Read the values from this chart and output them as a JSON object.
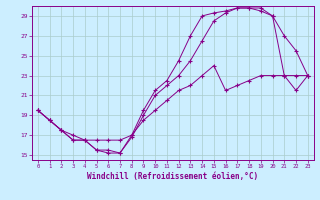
{
  "xlabel": "Windchill (Refroidissement éolien,°C)",
  "background_color": "#cceeff",
  "grid_color": "#aacccc",
  "line_color": "#880088",
  "xlim": [
    -0.5,
    23.5
  ],
  "ylim": [
    14.5,
    30.0
  ],
  "xticks": [
    0,
    1,
    2,
    3,
    4,
    5,
    6,
    7,
    8,
    9,
    10,
    11,
    12,
    13,
    14,
    15,
    16,
    17,
    18,
    19,
    20,
    21,
    22,
    23
  ],
  "yticks": [
    15,
    17,
    19,
    21,
    23,
    25,
    27,
    29
  ],
  "line1_x": [
    0,
    1,
    2,
    3,
    4,
    5,
    6,
    7,
    8,
    9,
    10,
    11,
    12,
    13,
    14,
    15,
    16,
    17,
    18,
    19,
    20,
    21,
    22,
    23
  ],
  "line1_y": [
    19.5,
    18.5,
    17.5,
    16.5,
    16.5,
    15.5,
    15.2,
    15.2,
    17.0,
    19.5,
    21.5,
    22.5,
    24.5,
    27.0,
    29.0,
    29.3,
    29.5,
    29.8,
    29.8,
    29.5,
    29.0,
    27.0,
    25.5,
    23.0
  ],
  "line2_x": [
    0,
    1,
    2,
    3,
    4,
    5,
    6,
    7,
    8,
    9,
    10,
    11,
    12,
    13,
    14,
    15,
    16,
    17,
    18,
    19,
    20,
    21,
    22,
    23
  ],
  "line2_y": [
    19.5,
    18.5,
    17.5,
    16.5,
    16.5,
    15.5,
    15.5,
    15.2,
    16.8,
    19.0,
    21.0,
    22.0,
    23.0,
    24.5,
    26.5,
    28.5,
    29.3,
    29.8,
    29.8,
    29.8,
    29.0,
    23.0,
    21.5,
    23.0
  ],
  "line3_x": [
    0,
    1,
    2,
    3,
    4,
    5,
    6,
    7,
    8,
    9,
    10,
    11,
    12,
    13,
    14,
    15,
    16,
    17,
    18,
    19,
    20,
    21,
    22,
    23
  ],
  "line3_y": [
    19.5,
    18.5,
    17.5,
    17.0,
    16.5,
    16.5,
    16.5,
    16.5,
    17.0,
    18.5,
    19.5,
    20.5,
    21.5,
    22.0,
    23.0,
    24.0,
    21.5,
    22.0,
    22.5,
    23.0,
    23.0,
    23.0,
    23.0,
    23.0
  ]
}
